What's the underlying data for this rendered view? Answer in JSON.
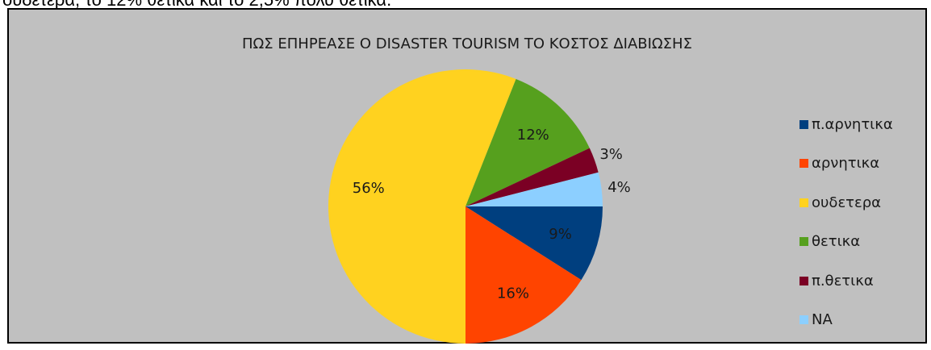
{
  "intro_text": "ουδέτερα, το 12% θετικά και το 2,5% πολύ θετικά.",
  "chart_data": {
    "type": "pie",
    "title": "ΠΩΣ ΕΠΗΡΕΑΣΕ Ο DISASTER TOURISM ΤΟ ΚΟΣΤΟΣ ΔΙΑΒΙΩΣΗΣ",
    "categories": [
      "π.αρνητικα",
      "αρνητικα",
      "ουδετερα",
      "θετικα",
      "π.θετικα",
      "ΝΑ"
    ],
    "values": [
      9,
      16,
      56,
      12,
      3,
      4
    ],
    "labels": [
      "9%",
      "16%",
      "56%",
      "12%",
      "3%",
      "4%"
    ],
    "colors": [
      "#003f7f",
      "#ff4400",
      "#ffd21f",
      "#56a01e",
      "#7b0024",
      "#8ccfff"
    ],
    "legend_position": "right"
  }
}
